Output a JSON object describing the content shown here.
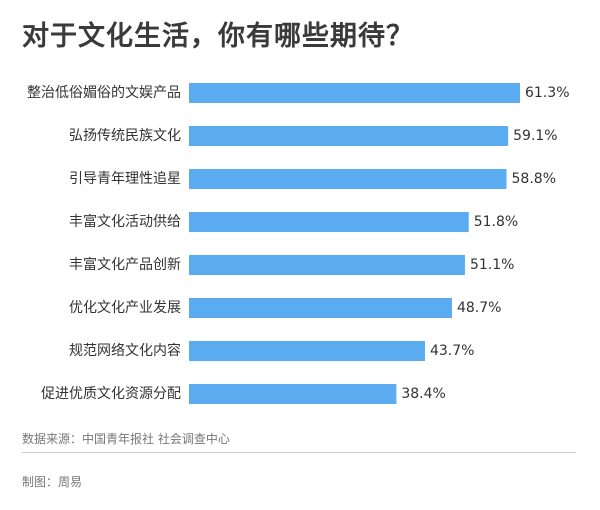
{
  "chart_data": {
    "type": "bar",
    "orientation": "horizontal",
    "title": "对于文化生活，你有哪些期待？",
    "categories": [
      "整治低俗媚俗的文娱产品",
      "弘扬传统民族文化",
      "引导青年理性追星",
      "丰富文化活动供给",
      "丰富文化产品创新",
      "优化文化产业发展",
      "规范网络文化内容",
      "促进优质文化资源分配"
    ],
    "values": [
      61.3,
      59.1,
      58.8,
      51.8,
      51.1,
      48.7,
      43.7,
      38.4
    ],
    "value_labels": [
      "61.3%",
      "59.1%",
      "58.8%",
      "51.8%",
      "51.1%",
      "48.7%",
      "43.7%",
      "38.4%"
    ],
    "unit": "%",
    "xlim": [
      0,
      100
    ],
    "bar_color": "#5aabef",
    "grid": false,
    "legend": "none"
  },
  "footer": {
    "source": "数据来源：中国青年报社 社会调查中心",
    "credit": "制图：周易"
  }
}
